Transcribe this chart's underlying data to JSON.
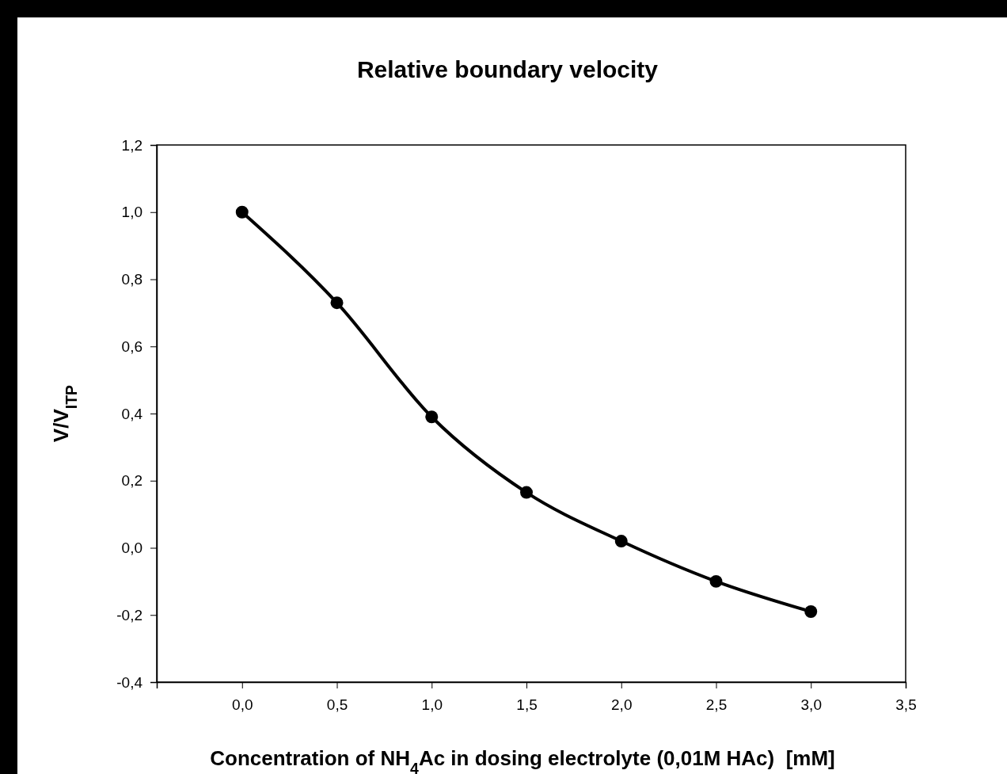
{
  "chart_data": {
    "type": "line",
    "title": "Relative boundary velocity",
    "xlabel": "Concentration of NH$_{4}$Ac in dosing electrolyte (0,01M HAc)  [mM]",
    "ylabel": "V/V$_{ITP}$",
    "x": [
      0,
      0.5,
      1,
      1.5,
      2,
      2.5,
      3
    ],
    "series": [
      {
        "color": "#000000",
        "values": [
          1.0,
          0.73,
          0.39,
          0.165,
          0.02,
          -0.1,
          -0.19
        ]
      }
    ],
    "xlim": [
      -0.45,
      3.5
    ],
    "ylim": [
      -0.4,
      1.2
    ],
    "xticks": [
      {
        "value": 0,
        "label": "0,0"
      },
      {
        "value": 0.5,
        "label": "0,5"
      },
      {
        "value": 1,
        "label": "1,0"
      },
      {
        "value": 1.5,
        "label": "1,5"
      },
      {
        "value": 2,
        "label": "2,0"
      },
      {
        "value": 2.5,
        "label": "2,5"
      },
      {
        "value": 3,
        "label": "3,0"
      },
      {
        "value": 3.5,
        "label": "3,5"
      }
    ],
    "yticks": [
      {
        "value": -0.4,
        "label": "-0,4"
      },
      {
        "value": -0.2,
        "label": "-0,2"
      },
      {
        "value": 0,
        "label": "0,0"
      },
      {
        "value": 0.2,
        "label": "0,2"
      },
      {
        "value": 0.4,
        "label": "0,4"
      },
      {
        "value": 0.6,
        "label": "0,6"
      },
      {
        "value": 0.8,
        "label": "0,8"
      },
      {
        "value": 1,
        "label": "1,0"
      },
      {
        "value": 1.2,
        "label": "1,2"
      }
    ],
    "grid": false,
    "marker": "circle",
    "line_style": "solid"
  }
}
